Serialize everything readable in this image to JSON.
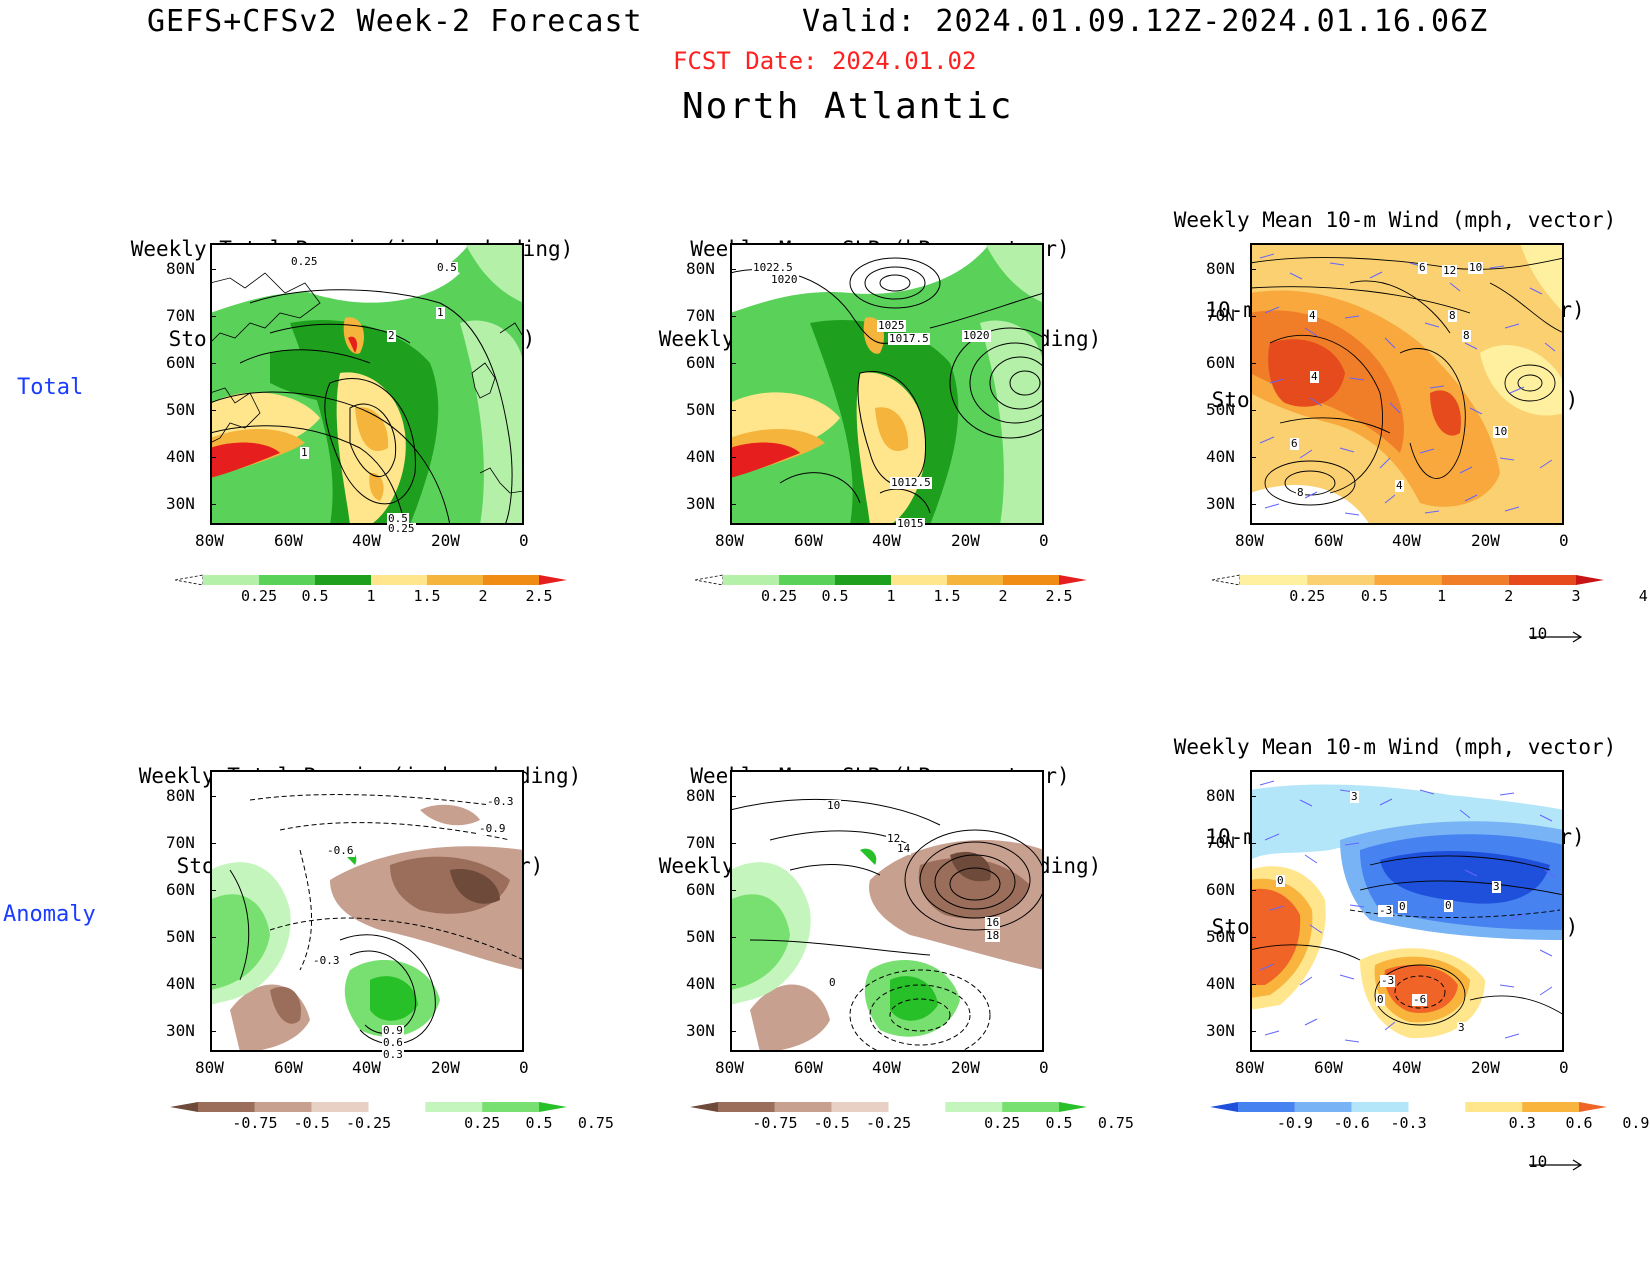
{
  "header": {
    "title": "GEFS+CFSv2 Week-2 Forecast",
    "valid": "Valid: 2024.01.09.12Z-2024.01.16.06Z",
    "fcst_date": "FCST Date: 2024.01.02",
    "region": "North Atlantic"
  },
  "rows": {
    "total": "Total",
    "anomaly": "Anomaly"
  },
  "panels": {
    "p1": {
      "line1": "Weekly Total Precip (inch, shading)",
      "line2": "Storm Track Density (contour)"
    },
    "p2": {
      "line1": "Weekly Mean SLP (hPa, contour)",
      "line2": "Weekly Total Precip (inch, shading)"
    },
    "p3": {
      "line1": "Weekly Mean 10-m Wind (mph, vector)",
      "line2": "10-m Wind Speed (mph, contour)",
      "line3": "Storm Track Density (shading)"
    },
    "p4": {
      "line1": "Weekly Total Precip (inch, shading)",
      "line2": "Storm Track Density (contour)"
    },
    "p5": {
      "line1": "Weekly Mean SLP (hPa, contour)",
      "line2": "Weekly Total Precip (inch, shading)"
    },
    "p6": {
      "line1": "Weekly Mean 10-m Wind (mph, vector)",
      "line2": "10-m Wind Speed (mph, contour)",
      "line3": "Storm Track Density (shading)"
    }
  },
  "axes": {
    "lat_labels": [
      "80N",
      "70N",
      "60N",
      "50N",
      "40N",
      "30N"
    ],
    "lon_labels": [
      "80W",
      "60W",
      "40W",
      "20W",
      "0"
    ]
  },
  "contour_labels": {
    "p1": [
      "0.25",
      "0.5",
      "1",
      "2",
      "1",
      "0.5",
      "0.25"
    ],
    "p2": [
      "1022.5",
      "1020",
      "1025",
      "1017.5",
      "1020",
      "1012.5",
      "1015"
    ],
    "p3": [
      "4",
      "6",
      "8",
      "10",
      "12",
      "8",
      "4",
      "6",
      "10",
      "4",
      "8"
    ],
    "p4": [
      "-0.3",
      "-0.9",
      "-0.6",
      "-0.3",
      "0.9",
      "0.6",
      "0.3"
    ],
    "p5": [
      "10",
      "12",
      "14",
      "16",
      "18",
      "0"
    ],
    "p6": [
      "3",
      "0",
      "-3",
      "0",
      "0",
      "3",
      "-3",
      "0",
      "-6",
      "3"
    ]
  },
  "colorbars": {
    "precip_total": {
      "labels": [
        "0.25",
        "0.5",
        "1",
        "1.5",
        "2",
        "2.5"
      ],
      "colors": [
        "#ffffff",
        "#b4f0a8",
        "#5ad25a",
        "#1ea01e",
        "#ffe68c",
        "#f5b43c",
        "#f08c14",
        "#e61e1e"
      ]
    },
    "track_total": {
      "labels": [
        "0.25",
        "0.5",
        "1",
        "2",
        "3",
        "4"
      ],
      "colors": [
        "#ffffff",
        "#fff0a0",
        "#fbd070",
        "#f8a83c",
        "#f07d28",
        "#e64b1e",
        "#c81414"
      ]
    },
    "precip_anom": {
      "labels": [
        "-0.75",
        "-0.5",
        "-0.25",
        "0.25",
        "0.5",
        "0.75"
      ],
      "colors": [
        "#6e4a3a",
        "#9a6e5a",
        "#c8a090",
        "#e8d0c4",
        "#ffffff",
        "#c4f5bc",
        "#78e070",
        "#28c028"
      ]
    },
    "track_anom": {
      "labels": [
        "-0.9",
        "-0.6",
        "-0.3",
        "0.3",
        "0.6",
        "0.9"
      ],
      "colors": [
        "#1e50dc",
        "#4682f0",
        "#78b4f5",
        "#b4e6fa",
        "#ffffff",
        "#ffe68c",
        "#f8b43c",
        "#f06428"
      ]
    }
  },
  "vector_ref": "10",
  "colors": {
    "ocean_bg": "#ffffff",
    "title_red": "#ff2020",
    "row_blue": "#1a3cff",
    "vector": "#6464ff"
  }
}
